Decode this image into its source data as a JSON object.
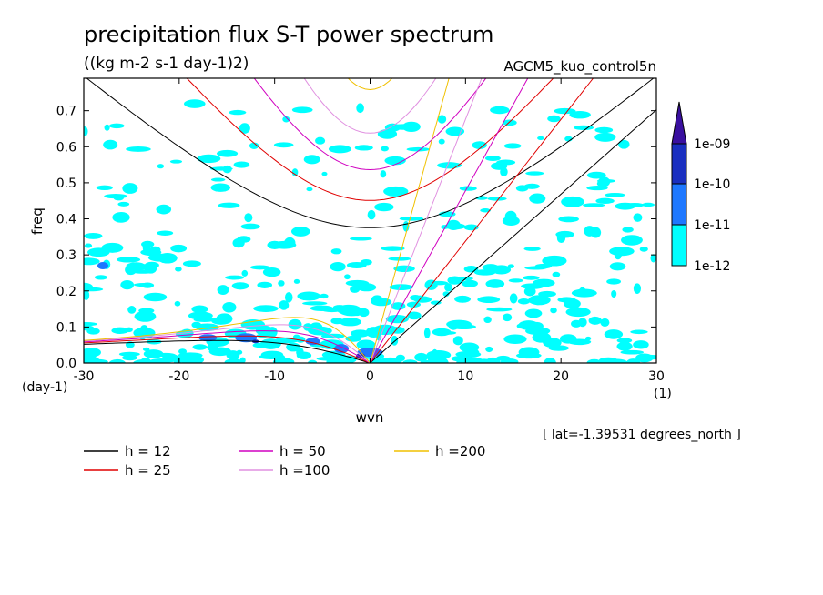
{
  "chart_data": {
    "type": "heatmap",
    "title": "precipitation flux S-T power spectrum",
    "subtitle": "((kg m-2 s-1 day-1)2)",
    "run_label": "AGCM5_kuo_control5n",
    "xlabel": "wvn",
    "ylabel": "freq",
    "x_unit": "(1)",
    "y_unit": "(day-1)",
    "xlim": [
      -30,
      30
    ],
    "ylim": [
      0,
      0.79
    ],
    "xticks": [
      "-30",
      "-20",
      "-10",
      "0",
      "10",
      "20",
      "30"
    ],
    "yticks": [
      "0.0",
      "0.1",
      "0.2",
      "0.3",
      "0.4",
      "0.5",
      "0.6",
      "0.7"
    ],
    "grid": false,
    "colorbar": {
      "labels": [
        "1e-12",
        "1e-11",
        "1e-10",
        "1e-09"
      ],
      "colors": [
        "#00ffff",
        "#1e78ff",
        "#1a2fc0",
        "#3a10a0"
      ]
    },
    "dispersion_curves": [
      {
        "label": "h = 12",
        "h": 12,
        "color": "#000000"
      },
      {
        "label": "h = 25",
        "h": 25,
        "color": "#e00000"
      },
      {
        "label": "h = 50",
        "h": 50,
        "color": "#d000c0"
      },
      {
        "label": "h =100",
        "h": 100,
        "color": "#e090e0"
      },
      {
        "label": "h =200",
        "h": 200,
        "color": "#f0c000"
      }
    ],
    "annotation": "[ lat=-1.39531 degrees_north ]"
  }
}
